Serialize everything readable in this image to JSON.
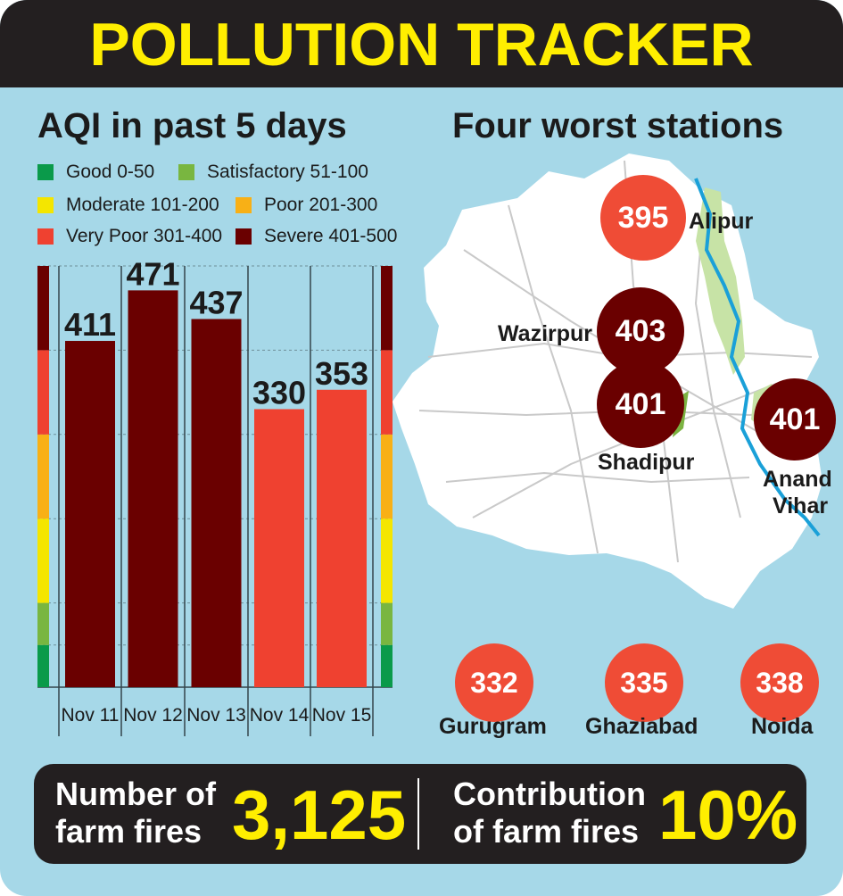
{
  "header": {
    "title": "POLLUTION TRACKER"
  },
  "aqi_section": {
    "title": "AQI in past 5 days"
  },
  "legend": [
    {
      "label": "Good 0-50",
      "color": "#0a9a4a"
    },
    {
      "label": "Satisfactory 51-100",
      "color": "#79b640"
    },
    {
      "label": "Moderate 101-200",
      "color": "#f4e600"
    },
    {
      "label": "Poor 201-300",
      "color": "#f8b016"
    },
    {
      "label": "Very Poor 301-400",
      "color": "#ef4130"
    },
    {
      "label": "Severe 401-500",
      "color": "#6a0000"
    }
  ],
  "chart_data": {
    "type": "bar",
    "title": "AQI in past 5 days",
    "categories": [
      "Nov 11",
      "Nov 12",
      "Nov 13",
      "Nov 14",
      "Nov 15"
    ],
    "values": [
      411,
      471,
      437,
      330,
      353
    ],
    "colors": [
      "#6a0000",
      "#6a0000",
      "#6a0000",
      "#ef4130",
      "#ef4130"
    ],
    "ylim": [
      0,
      500
    ],
    "scale_bands": [
      {
        "from": 0,
        "to": 50,
        "color": "#0a9a4a"
      },
      {
        "from": 50,
        "to": 100,
        "color": "#79b640"
      },
      {
        "from": 100,
        "to": 200,
        "color": "#f4e600"
      },
      {
        "from": 200,
        "to": 300,
        "color": "#f8b016"
      },
      {
        "from": 300,
        "to": 400,
        "color": "#ef4130"
      },
      {
        "from": 400,
        "to": 500,
        "color": "#6a0000"
      }
    ]
  },
  "stations_section": {
    "title": "Four worst stations"
  },
  "stations": [
    {
      "name": "Alipur",
      "aqi": "395",
      "color": "#ef4c36"
    },
    {
      "name": "Wazirpur",
      "aqi": "403",
      "color": "#6a0000"
    },
    {
      "name": "Shadipur",
      "aqi": "401",
      "color": "#6a0000"
    },
    {
      "name_line1": "Anand",
      "name_line2": "Vihar",
      "aqi": "401",
      "color": "#6a0000"
    }
  ],
  "ncr_cities": [
    {
      "name": "Gurugram",
      "aqi": "332",
      "color": "#ef4c36"
    },
    {
      "name": "Ghaziabad",
      "aqi": "335",
      "color": "#ef4c36"
    },
    {
      "name": "Noida",
      "aqi": "338",
      "color": "#ef4c36"
    }
  ],
  "stats": {
    "farm_fires_label_1": "Number of",
    "farm_fires_label_2": "farm fires",
    "farm_fires_value": "3,125",
    "contribution_label_1": "Contribution",
    "contribution_label_2": "of farm fires",
    "contribution_value": "10%"
  }
}
